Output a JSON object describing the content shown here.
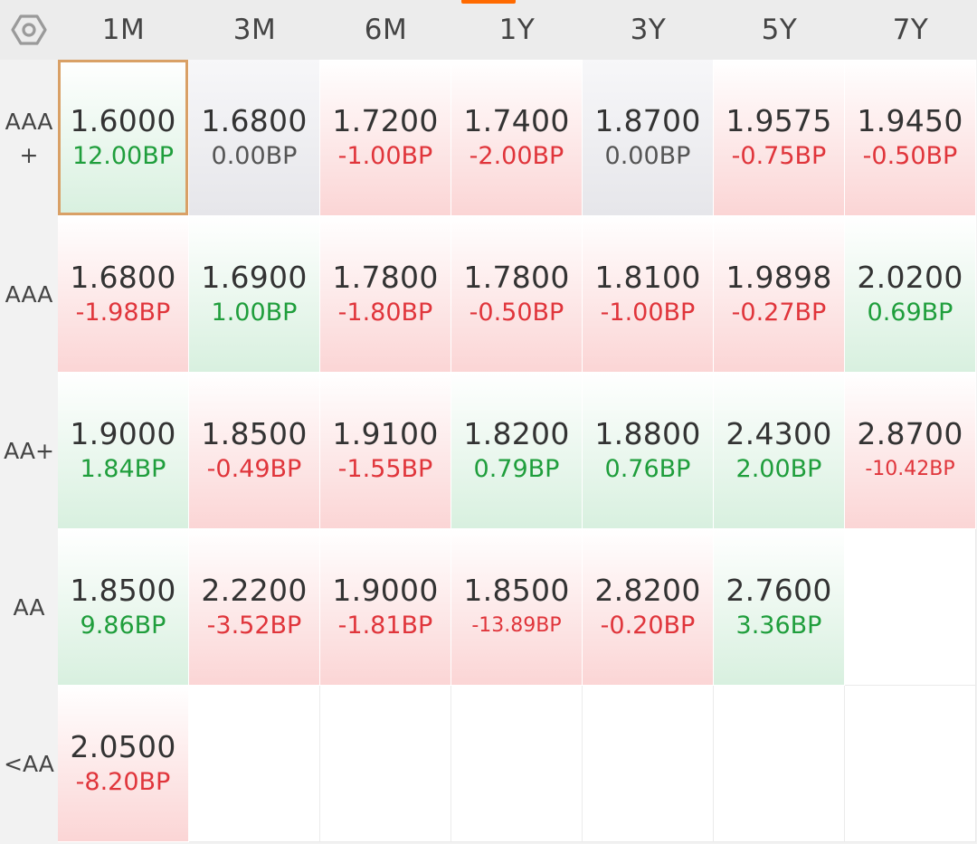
{
  "columns": [
    "1M",
    "3M",
    "6M",
    "1Y",
    "3Y",
    "5Y",
    "7Y"
  ],
  "rows": [
    {
      "label": "AAA\n+",
      "cells": [
        {
          "value": "1.6000",
          "change": "12.00BP",
          "trend": "down",
          "selected": true
        },
        {
          "value": "1.6800",
          "change": "0.00BP",
          "trend": "flat"
        },
        {
          "value": "1.7200",
          "change": "-1.00BP",
          "trend": "up"
        },
        {
          "value": "1.7400",
          "change": "-2.00BP",
          "trend": "up"
        },
        {
          "value": "1.8700",
          "change": "0.00BP",
          "trend": "flat"
        },
        {
          "value": "1.9575",
          "change": "-0.75BP",
          "trend": "up"
        },
        {
          "value": "1.9450",
          "change": "-0.50BP",
          "trend": "up"
        }
      ]
    },
    {
      "label": "AAA",
      "cells": [
        {
          "value": "1.6800",
          "change": "-1.98BP",
          "trend": "up"
        },
        {
          "value": "1.6900",
          "change": "1.00BP",
          "trend": "down"
        },
        {
          "value": "1.7800",
          "change": "-1.80BP",
          "trend": "up"
        },
        {
          "value": "1.7800",
          "change": "-0.50BP",
          "trend": "up"
        },
        {
          "value": "1.8100",
          "change": "-1.00BP",
          "trend": "up"
        },
        {
          "value": "1.9898",
          "change": "-0.27BP",
          "trend": "up"
        },
        {
          "value": "2.0200",
          "change": "0.69BP",
          "trend": "down"
        }
      ]
    },
    {
      "label": "AA+",
      "cells": [
        {
          "value": "1.9000",
          "change": "1.84BP",
          "trend": "down"
        },
        {
          "value": "1.8500",
          "change": "-0.49BP",
          "trend": "up"
        },
        {
          "value": "1.9100",
          "change": "-1.55BP",
          "trend": "up"
        },
        {
          "value": "1.8200",
          "change": "0.79BP",
          "trend": "down"
        },
        {
          "value": "1.8800",
          "change": "0.76BP",
          "trend": "down"
        },
        {
          "value": "2.4300",
          "change": "2.00BP",
          "trend": "down"
        },
        {
          "value": "2.8700",
          "change": "-10.42BP",
          "trend": "up",
          "small": true
        }
      ]
    },
    {
      "label": "AA",
      "cells": [
        {
          "value": "1.8500",
          "change": "9.86BP",
          "trend": "down"
        },
        {
          "value": "2.2200",
          "change": "-3.52BP",
          "trend": "up"
        },
        {
          "value": "1.9000",
          "change": "-1.81BP",
          "trend": "up"
        },
        {
          "value": "1.8500",
          "change": "-13.89BP",
          "trend": "up",
          "small": true
        },
        {
          "value": "2.8200",
          "change": "-0.20BP",
          "trend": "up"
        },
        {
          "value": "2.7600",
          "change": "3.36BP",
          "trend": "down"
        },
        null
      ]
    },
    {
      "label": "<AA",
      "cells": [
        {
          "value": "2.0500",
          "change": "-8.20BP",
          "trend": "up"
        },
        null,
        null,
        null,
        null,
        null,
        null
      ]
    }
  ],
  "colors": {
    "up_text": "#e0353b",
    "down_text": "#1f9e3c",
    "flat_text": "#555555",
    "selected_border": "#d9a066",
    "accent": "#ff6a00"
  },
  "icons": {
    "settings": "hexagon-settings-icon"
  }
}
